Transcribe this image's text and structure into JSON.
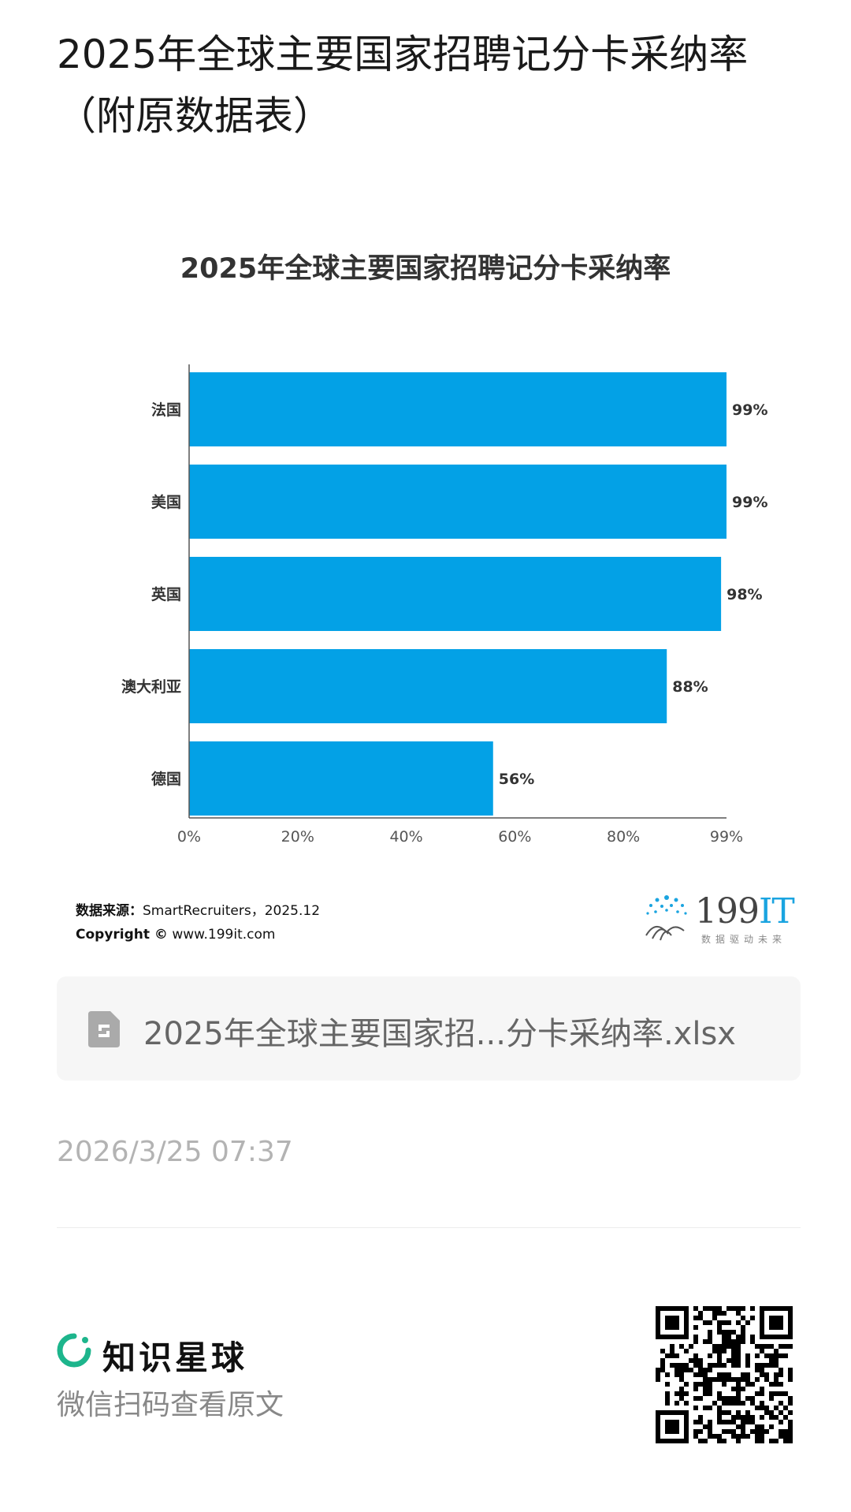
{
  "page": {
    "title": "2025年全球主要国家招聘记分卡采纳率（附原数据表）"
  },
  "chart_data": {
    "type": "bar",
    "orientation": "horizontal",
    "title": "2025年全球主要国家招聘记分卡采纳率",
    "categories": [
      "法国",
      "美国",
      "英国",
      "澳大利亚",
      "德国"
    ],
    "values": [
      99,
      99,
      98,
      88,
      56
    ],
    "value_labels": [
      "99%",
      "99%",
      "98%",
      "88%",
      "56%"
    ],
    "x_ticks": [
      "0%",
      "20%",
      "40%",
      "60%",
      "80%",
      "99%"
    ],
    "x_tick_values": [
      0,
      20,
      40,
      60,
      80,
      99
    ],
    "xlim": [
      0,
      99
    ],
    "xlabel": "",
    "ylabel": "",
    "grid": false,
    "bar_color": "#03a1e6"
  },
  "source": {
    "label": "数据来源：",
    "text": "SmartRecruiters，2025.12",
    "copyright_label": "Copyright ©",
    "copyright_text": "www.199it.com"
  },
  "logo": {
    "main": "199",
    "accent": "IT",
    "tagline": "数据驱动未来",
    "accent_color": "#1aa4e0"
  },
  "file": {
    "name": "2025年全球主要国家招...分卡采纳率.xlsx",
    "icon": "spreadsheet-file-icon"
  },
  "timestamp": "2026/3/25 07:37",
  "footer": {
    "brand_name": "知识星球",
    "brand_icon": "zsxq-logo-icon",
    "brand_color": "#1db58c",
    "scan_hint": "微信扫码查看原文",
    "qr_icon": "qr-code-icon"
  }
}
